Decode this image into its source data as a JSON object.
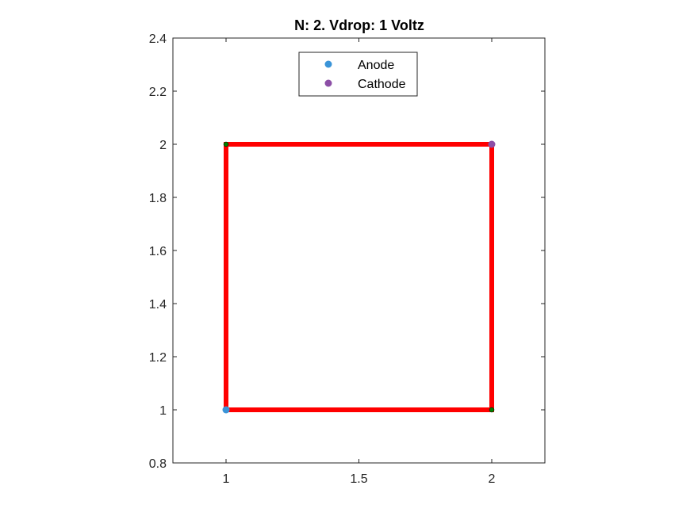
{
  "chart_data": {
    "type": "line",
    "title": "N: 2. Vdrop: 1 Voltz",
    "xlabel": "",
    "ylabel": "",
    "xlim": [
      0.8,
      2.2
    ],
    "ylim": [
      0.8,
      2.4
    ],
    "xticks": [
      1,
      1.5,
      2
    ],
    "xtick_labels": [
      "1",
      "1.5",
      "2"
    ],
    "yticks": [
      0.8,
      1,
      1.2,
      1.4,
      1.6,
      1.8,
      2,
      2.2,
      2.4
    ],
    "ytick_labels": [
      "0.8",
      "1",
      "1.2",
      "1.4",
      "1.6",
      "1.8",
      "2",
      "2.2",
      "2.4"
    ],
    "grid": false,
    "legend_position": "top-center",
    "edges": [
      {
        "from": [
          1,
          1
        ],
        "to": [
          2,
          1
        ]
      },
      {
        "from": [
          2,
          1
        ],
        "to": [
          2,
          2
        ]
      },
      {
        "from": [
          2,
          2
        ],
        "to": [
          1,
          2
        ]
      },
      {
        "from": [
          1,
          2
        ],
        "to": [
          1,
          1
        ]
      }
    ],
    "edge_color": "#ff0000",
    "nodes": [
      {
        "x": 1,
        "y": 2,
        "color": "#008000"
      },
      {
        "x": 2,
        "y": 1,
        "color": "#008000"
      }
    ],
    "series": [
      {
        "name": "Anode",
        "points": [
          [
            1,
            1
          ]
        ],
        "color": "#3a94d8"
      },
      {
        "name": "Cathode",
        "points": [
          [
            2,
            2
          ]
        ],
        "color": "#8c4fa6"
      }
    ]
  }
}
